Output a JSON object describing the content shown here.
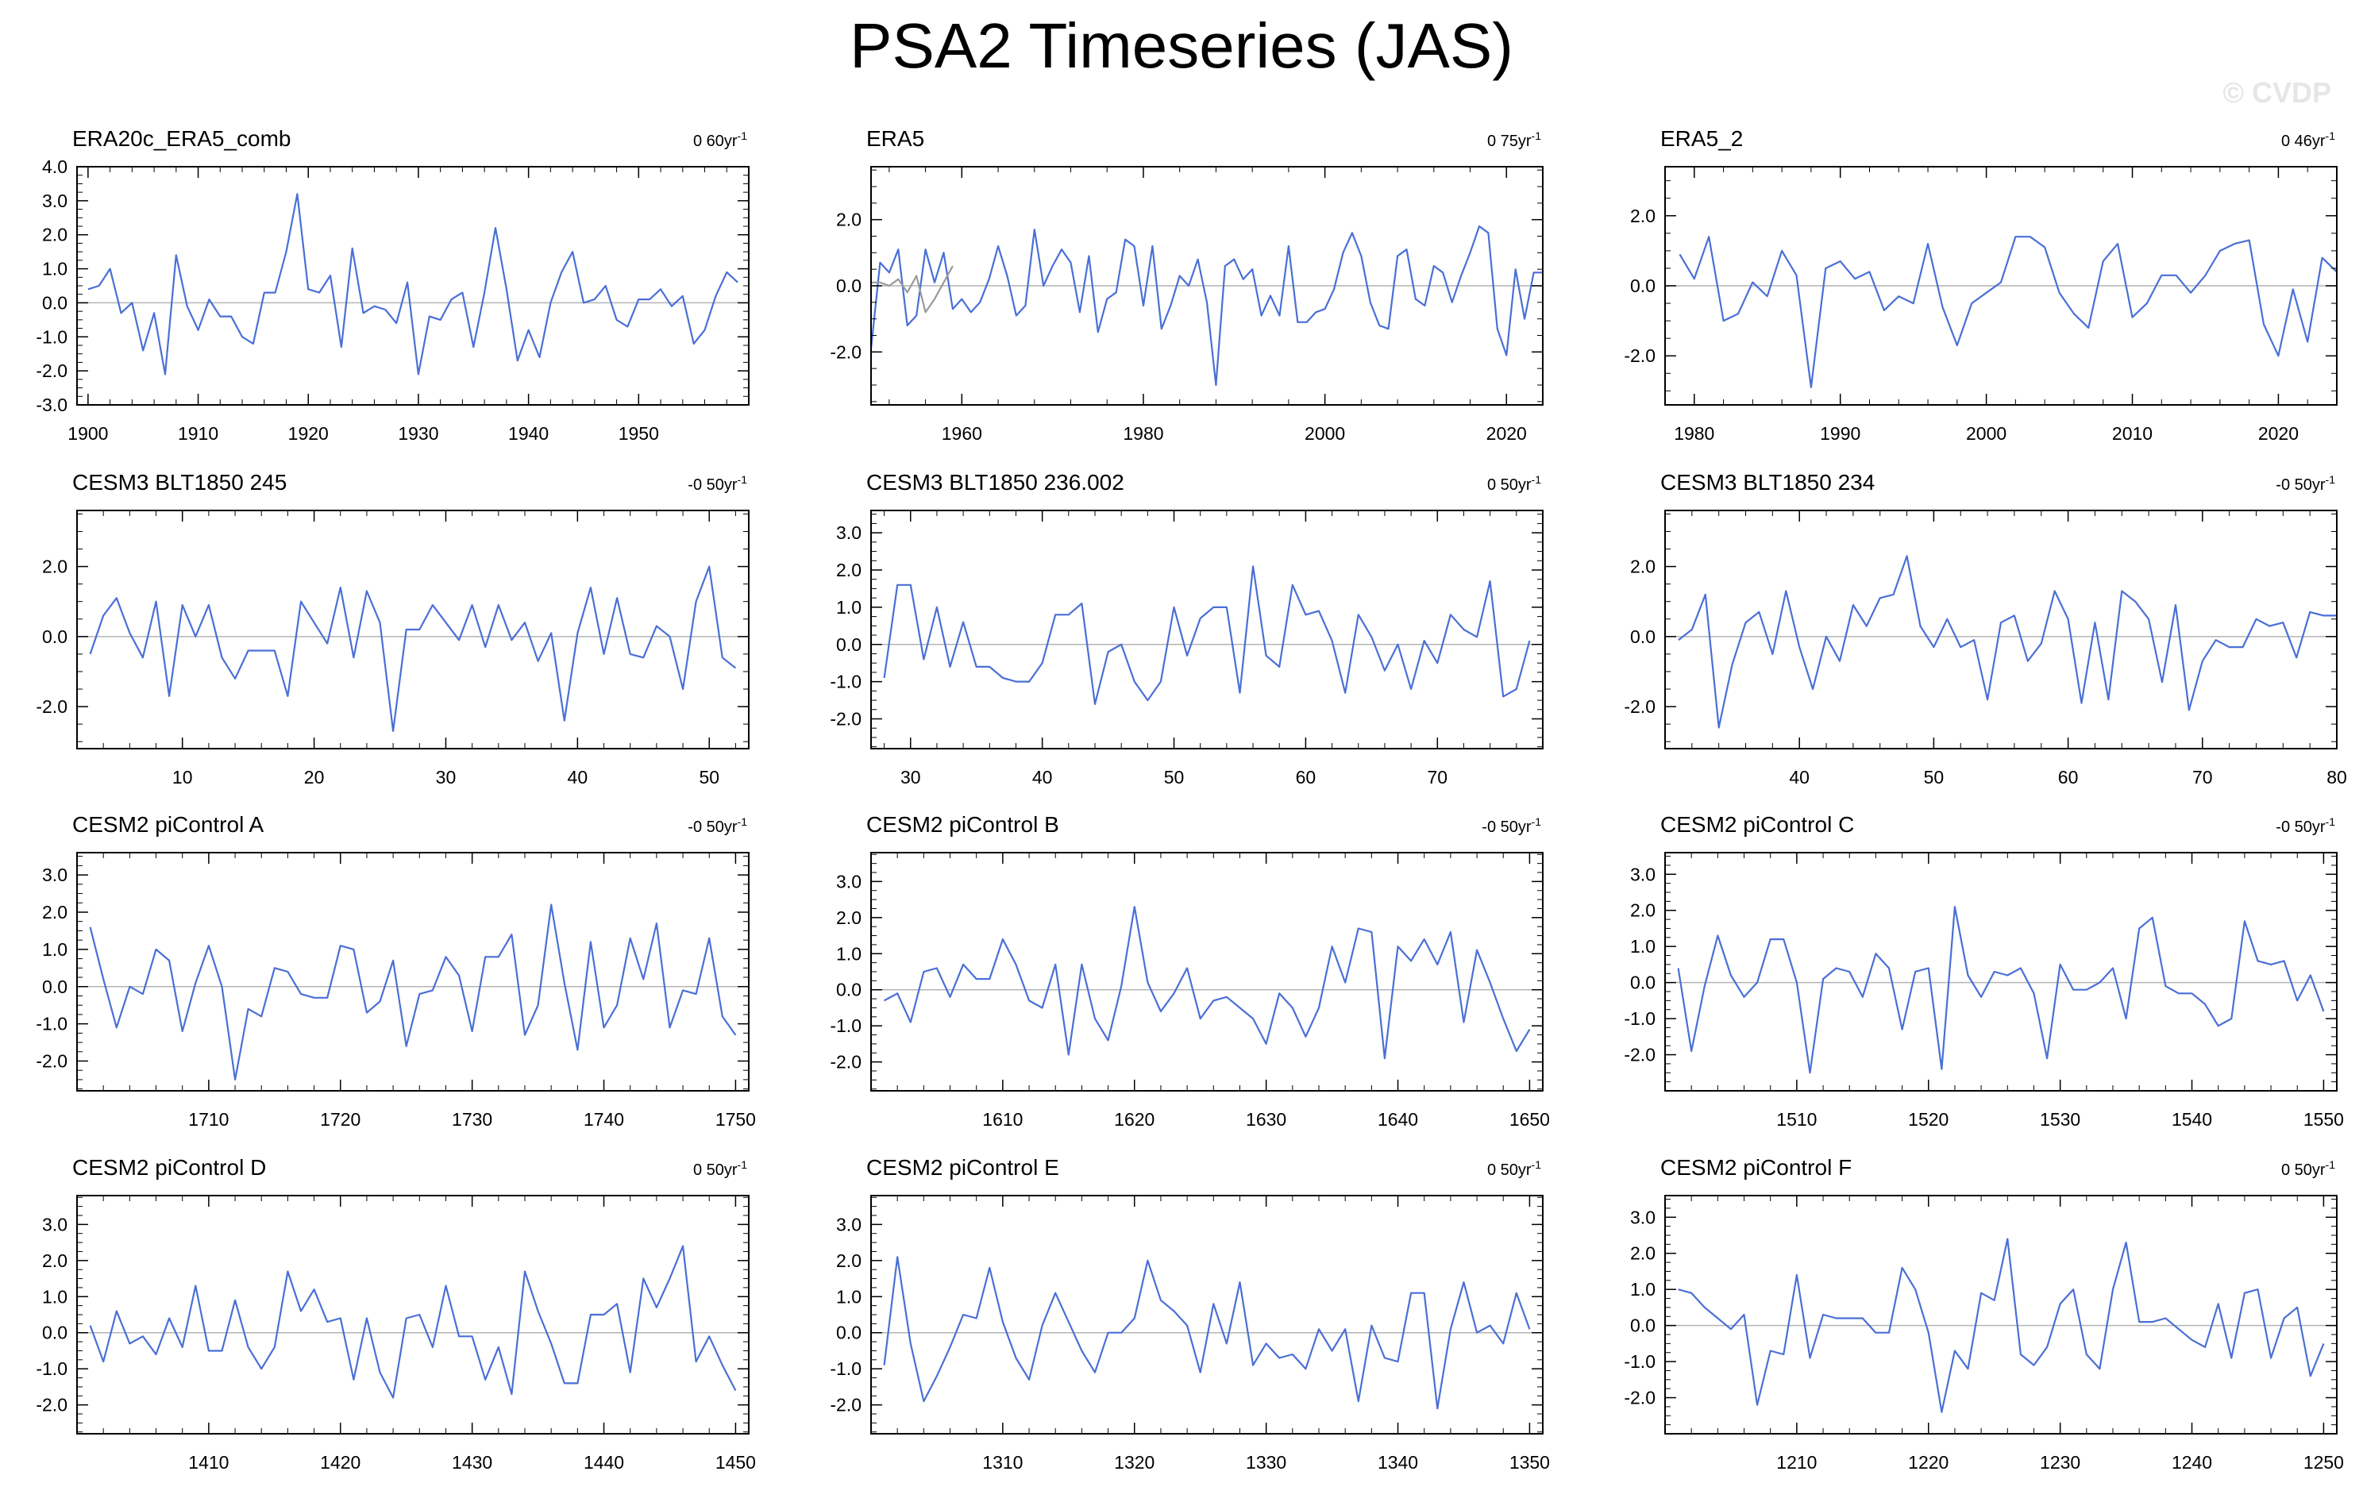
{
  "title": "PSA2 Timeseries (JAS)",
  "watermark": "© CVDP",
  "colors": {
    "series": "#4a6fd6",
    "zero_line": "#b4b4b4",
    "frame": "#000000"
  },
  "chart_data": [
    {
      "type": "line",
      "title": "ERA20c_ERA5_comb",
      "trend": "0 60yr",
      "trend_sup": "-1",
      "xlim": [
        1899,
        1960
      ],
      "ylim": [
        -3,
        4
      ],
      "xticks": [
        1900,
        1910,
        1920,
        1930,
        1940,
        1950
      ],
      "yticks": [
        -3,
        -2,
        -1,
        0,
        1,
        2,
        3,
        4
      ],
      "ytick_labels": [
        "-3.0",
        "-2.0",
        "-1.0",
        "0.0",
        "1.0",
        "2.0",
        "3.0",
        "4.0"
      ],
      "series": [
        {
          "x0": 1900,
          "values": [
            0.4,
            0.5,
            1.0,
            -0.3,
            0.0,
            -1.4,
            -0.3,
            -2.1,
            1.4,
            -0.1,
            -0.8,
            0.1,
            -0.4,
            -0.4,
            -1.0,
            -1.2,
            0.3,
            0.3,
            1.5,
            3.2,
            0.4,
            0.3,
            0.8,
            -1.3,
            1.6,
            -0.3,
            -0.1,
            -0.2,
            -0.6,
            0.6,
            -2.1,
            -0.4,
            -0.5,
            0.1,
            0.3,
            -1.3,
            0.3,
            2.2,
            0.4,
            -1.7,
            -0.8,
            -1.6,
            0.0,
            0.9,
            1.5,
            0.0,
            0.1,
            0.5,
            -0.5,
            -0.7,
            0.1,
            0.1,
            0.4,
            -0.1,
            0.2,
            -1.2,
            -0.8,
            0.2,
            0.9,
            0.6
          ]
        }
      ]
    },
    {
      "type": "line",
      "title": "ERA5",
      "trend": "0 75yr",
      "trend_sup": "-1",
      "xlim": [
        1950,
        2024
      ],
      "ylim": [
        -3.6,
        3.6
      ],
      "xticks": [
        1960,
        1980,
        2000,
        2020
      ],
      "yticks": [
        -2,
        0,
        2
      ],
      "ytick_labels": [
        "-2.0",
        "0.0",
        "2.0"
      ],
      "series": [
        {
          "x0": 1950,
          "values": [
            -1.9,
            0.7,
            0.4,
            1.1,
            -1.2,
            -0.9,
            1.1,
            0.1,
            1.0,
            -0.7,
            -0.4,
            -0.8,
            -0.5,
            0.2,
            1.2,
            0.3,
            -0.9,
            -0.6,
            1.7,
            0.0,
            0.6,
            1.1,
            0.7,
            -0.8,
            0.9,
            -1.4,
            -0.4,
            -0.2,
            1.4,
            1.2,
            -0.6,
            1.2,
            -1.3,
            -0.6,
            0.3,
            0.0,
            0.8,
            -0.5,
            -3.0,
            0.6,
            0.8,
            0.2,
            0.5,
            -0.9,
            -0.3,
            -0.9,
            1.2,
            -1.1,
            -1.1,
            -0.8,
            -0.7,
            -0.1,
            1.0,
            1.6,
            0.9,
            -0.5,
            -1.2,
            -1.3,
            0.9,
            1.1,
            -0.4,
            -0.6,
            0.6,
            0.4,
            -0.5,
            0.3,
            1.0,
            1.8,
            1.6,
            -1.3,
            -2.1,
            0.5,
            -1.0,
            0.4,
            0.4
          ]
        },
        {
          "x0": 1950,
          "values": [
            0.1,
            0.1,
            0.0,
            0.2,
            -0.2,
            0.3,
            -0.8,
            -0.4,
            0.1,
            0.6
          ],
          "color": "#9a9a9a"
        }
      ]
    },
    {
      "type": "line",
      "title": "ERA5_2",
      "trend": "0 46yr",
      "trend_sup": "-1",
      "xlim": [
        1978,
        2024
      ],
      "ylim": [
        -3.4,
        3.4
      ],
      "xticks": [
        1980,
        1990,
        2000,
        2010,
        2020
      ],
      "yticks": [
        -2,
        0,
        2
      ],
      "ytick_labels": [
        "-2.0",
        "0.0",
        "2.0"
      ],
      "series": [
        {
          "x0": 1979,
          "values": [
            0.9,
            0.2,
            1.4,
            -1.0,
            -0.8,
            0.1,
            -0.3,
            1.0,
            0.3,
            -2.9,
            0.5,
            0.7,
            0.2,
            0.4,
            -0.7,
            -0.3,
            -0.5,
            1.2,
            -0.6,
            -1.7,
            -0.5,
            -0.2,
            0.1,
            1.4,
            1.4,
            1.1,
            -0.2,
            -0.8,
            -1.2,
            0.7,
            1.2,
            -0.9,
            -0.5,
            0.3,
            0.3,
            -0.2,
            0.3,
            1.0,
            1.2,
            1.3,
            -1.1,
            -2.0,
            -0.1,
            -1.6,
            0.8,
            0.4
          ]
        }
      ]
    },
    {
      "type": "line",
      "title": "CESM3 BLT1850 245",
      "trend": "-0 50yr",
      "trend_sup": "-1",
      "xlim": [
        2,
        53
      ],
      "ylim": [
        -3.2,
        3.6
      ],
      "xticks": [
        10,
        20,
        30,
        40,
        50
      ],
      "yticks": [
        -2,
        0,
        2
      ],
      "ytick_labels": [
        "-2.0",
        "0.0",
        "2.0"
      ],
      "series": [
        {
          "x0": 3,
          "values": [
            -0.5,
            0.6,
            1.1,
            0.1,
            -0.6,
            1.0,
            -1.7,
            0.9,
            0.0,
            0.9,
            -0.6,
            -1.2,
            -0.4,
            -0.4,
            -0.4,
            -1.7,
            1.0,
            0.4,
            -0.2,
            1.4,
            -0.6,
            1.3,
            0.4,
            -2.7,
            0.2,
            0.2,
            0.9,
            0.4,
            -0.1,
            0.9,
            -0.3,
            0.9,
            -0.1,
            0.4,
            -0.7,
            0.1,
            -2.4,
            0.1,
            1.4,
            -0.5,
            1.1,
            -0.5,
            -0.6,
            0.3,
            0.0,
            -1.5,
            1.0,
            2.0,
            -0.6,
            -0.9
          ]
        }
      ]
    },
    {
      "type": "line",
      "title": "CESM3 BLT1850 236.002",
      "trend": "0 50yr",
      "trend_sup": "-1",
      "xlim": [
        27,
        78
      ],
      "ylim": [
        -2.8,
        3.6
      ],
      "xticks": [
        30,
        40,
        50,
        60,
        70
      ],
      "yticks": [
        -2,
        -1,
        0,
        1,
        2,
        3
      ],
      "ytick_labels": [
        "-2.0",
        "-1.0",
        "0.0",
        "1.0",
        "2.0",
        "3.0"
      ],
      "series": [
        {
          "x0": 28,
          "values": [
            -0.9,
            1.6,
            1.6,
            -0.4,
            1.0,
            -0.6,
            0.6,
            -0.6,
            -0.6,
            -0.9,
            -1.0,
            -1.0,
            -0.5,
            0.8,
            0.8,
            1.1,
            -1.6,
            -0.2,
            0.0,
            -1.0,
            -1.5,
            -1.0,
            1.0,
            -0.3,
            0.7,
            1.0,
            1.0,
            -1.3,
            2.1,
            -0.3,
            -0.6,
            1.6,
            0.8,
            0.9,
            0.1,
            -1.3,
            0.8,
            0.2,
            -0.7,
            0.0,
            -1.2,
            0.1,
            -0.5,
            0.8,
            0.4,
            0.2,
            1.7,
            -1.4,
            -1.2,
            0.1
          ]
        }
      ]
    },
    {
      "type": "line",
      "title": "CESM3 BLT1850 234",
      "trend": "-0 50yr",
      "trend_sup": "-1",
      "xlim": [
        30,
        80
      ],
      "ylim": [
        -3.2,
        3.6
      ],
      "xticks": [
        40,
        50,
        60,
        70,
        80
      ],
      "yticks": [
        -2,
        0,
        2
      ],
      "ytick_labels": [
        "-2.0",
        "0.0",
        "2.0"
      ],
      "series": [
        {
          "x0": 31,
          "values": [
            -0.1,
            0.2,
            1.2,
            -2.6,
            -0.8,
            0.4,
            0.7,
            -0.5,
            1.3,
            -0.3,
            -1.5,
            0.0,
            -0.7,
            0.9,
            0.3,
            1.1,
            1.2,
            2.3,
            0.3,
            -0.3,
            0.5,
            -0.3,
            -0.1,
            -1.8,
            0.4,
            0.6,
            -0.7,
            -0.2,
            1.3,
            0.5,
            -1.9,
            0.4,
            -1.8,
            1.3,
            1.0,
            0.5,
            -1.3,
            0.9,
            -2.1,
            -0.7,
            -0.1,
            -0.3,
            -0.3,
            0.5,
            0.3,
            0.4,
            -0.6,
            0.7,
            0.6,
            0.6
          ]
        }
      ]
    },
    {
      "type": "line",
      "title": "CESM2 piControl A",
      "trend": "-0 50yr",
      "trend_sup": "-1",
      "xlim": [
        1700,
        1751
      ],
      "ylim": [
        -2.8,
        3.6
      ],
      "xticks": [
        1710,
        1720,
        1730,
        1740,
        1750
      ],
      "yticks": [
        -2,
        -1,
        0,
        1,
        2,
        3
      ],
      "ytick_labels": [
        "-2.0",
        "-1.0",
        "0.0",
        "1.0",
        "2.0",
        "3.0"
      ],
      "series": [
        {
          "x0": 1701,
          "values": [
            1.6,
            0.2,
            -1.1,
            0.0,
            -0.2,
            1.0,
            0.7,
            -1.2,
            0.1,
            1.1,
            0.0,
            -2.5,
            -0.6,
            -0.8,
            0.5,
            0.4,
            -0.2,
            -0.3,
            -0.3,
            1.1,
            1.0,
            -0.7,
            -0.4,
            0.7,
            -1.6,
            -0.2,
            -0.1,
            0.8,
            0.3,
            -1.2,
            0.8,
            0.8,
            1.4,
            -1.3,
            -0.5,
            2.2,
            0.1,
            -1.7,
            1.2,
            -1.1,
            -0.5,
            1.3,
            0.2,
            1.7,
            -1.1,
            -0.1,
            -0.2,
            1.3,
            -0.8,
            -1.3
          ]
        }
      ]
    },
    {
      "type": "line",
      "title": "CESM2 piControl B",
      "trend": "-0 50yr",
      "trend_sup": "-1",
      "xlim": [
        1600,
        1651
      ],
      "ylim": [
        -2.8,
        3.8
      ],
      "xticks": [
        1610,
        1620,
        1630,
        1640,
        1650
      ],
      "yticks": [
        -2,
        -1,
        0,
        1,
        2,
        3
      ],
      "ytick_labels": [
        "-2.0",
        "-1.0",
        "0.0",
        "1.0",
        "2.0",
        "3.0"
      ],
      "series": [
        {
          "x0": 1601,
          "values": [
            -0.3,
            -0.1,
            -0.9,
            0.5,
            0.6,
            -0.2,
            0.7,
            0.3,
            0.3,
            1.4,
            0.7,
            -0.3,
            -0.5,
            0.7,
            -1.8,
            0.7,
            -0.8,
            -1.4,
            0.1,
            2.3,
            0.2,
            -0.6,
            -0.1,
            0.6,
            -0.8,
            -0.3,
            -0.2,
            -0.5,
            -0.8,
            -1.5,
            -0.1,
            -0.5,
            -1.3,
            -0.5,
            1.2,
            0.2,
            1.7,
            1.6,
            -1.9,
            1.2,
            0.8,
            1.4,
            0.7,
            1.6,
            -0.9,
            1.1,
            0.2,
            -0.8,
            -1.7,
            -1.1
          ]
        }
      ]
    },
    {
      "type": "line",
      "title": "CESM2 piControl C",
      "trend": "-0 50yr",
      "trend_sup": "-1",
      "xlim": [
        1500,
        1551
      ],
      "ylim": [
        -3.0,
        3.6
      ],
      "xticks": [
        1510,
        1520,
        1530,
        1540,
        1550
      ],
      "yticks": [
        -2,
        -1,
        0,
        1,
        2,
        3
      ],
      "ytick_labels": [
        "-2.0",
        "-1.0",
        "0.0",
        "1.0",
        "2.0",
        "3.0"
      ],
      "series": [
        {
          "x0": 1501,
          "values": [
            0.4,
            -1.9,
            -0.1,
            1.3,
            0.2,
            -0.4,
            0.0,
            1.2,
            1.2,
            0.0,
            -2.5,
            0.1,
            0.4,
            0.3,
            -0.4,
            0.8,
            0.4,
            -1.3,
            0.3,
            0.4,
            -2.4,
            2.1,
            0.2,
            -0.4,
            0.3,
            0.2,
            0.4,
            -0.3,
            -2.1,
            0.5,
            -0.2,
            -0.2,
            0.0,
            0.4,
            -1.0,
            1.5,
            1.8,
            -0.1,
            -0.3,
            -0.3,
            -0.6,
            -1.2,
            -1.0,
            1.7,
            0.6,
            0.5,
            0.6,
            -0.5,
            0.2,
            -0.8
          ]
        }
      ]
    },
    {
      "type": "line",
      "title": "CESM2 piControl D",
      "trend": "0 50yr",
      "trend_sup": "-1",
      "xlim": [
        1400,
        1451
      ],
      "ylim": [
        -2.8,
        3.8
      ],
      "xticks": [
        1410,
        1420,
        1430,
        1440,
        1450
      ],
      "yticks": [
        -2,
        -1,
        0,
        1,
        2,
        3
      ],
      "ytick_labels": [
        "-2.0",
        "-1.0",
        "0.0",
        "1.0",
        "2.0",
        "3.0"
      ],
      "series": [
        {
          "x0": 1401,
          "values": [
            0.2,
            -0.8,
            0.6,
            -0.3,
            -0.1,
            -0.6,
            0.4,
            -0.4,
            1.3,
            -0.5,
            -0.5,
            0.9,
            -0.4,
            -1.0,
            -0.4,
            1.7,
            0.6,
            1.2,
            0.3,
            0.4,
            -1.3,
            0.4,
            -1.1,
            -1.8,
            0.4,
            0.5,
            -0.4,
            1.3,
            -0.1,
            -0.1,
            -1.3,
            -0.4,
            -1.7,
            1.7,
            0.6,
            -0.3,
            -1.4,
            -1.4,
            0.5,
            0.5,
            0.8,
            -1.1,
            1.5,
            0.7,
            1.5,
            2.4,
            -0.8,
            -0.1,
            -0.9,
            -1.6
          ]
        }
      ]
    },
    {
      "type": "line",
      "title": "CESM2 piControl E",
      "trend": "0 50yr",
      "trend_sup": "-1",
      "xlim": [
        1300,
        1351
      ],
      "ylim": [
        -2.8,
        3.8
      ],
      "xticks": [
        1310,
        1320,
        1330,
        1340,
        1350
      ],
      "yticks": [
        -2,
        -1,
        0,
        1,
        2,
        3
      ],
      "ytick_labels": [
        "-2.0",
        "-1.0",
        "0.0",
        "1.0",
        "2.0",
        "3.0"
      ],
      "series": [
        {
          "x0": 1301,
          "values": [
            -0.9,
            2.1,
            -0.3,
            -1.9,
            -1.2,
            -0.4,
            0.5,
            0.4,
            1.8,
            0.3,
            -0.7,
            -1.3,
            0.2,
            1.1,
            0.3,
            -0.5,
            -1.1,
            0.0,
            0.0,
            0.4,
            2.0,
            0.9,
            0.6,
            0.2,
            -1.1,
            0.8,
            -0.3,
            1.4,
            -0.9,
            -0.3,
            -0.7,
            -0.6,
            -1.0,
            0.1,
            -0.5,
            0.1,
            -1.9,
            0.2,
            -0.7,
            -0.8,
            1.1,
            1.1,
            -2.1,
            0.1,
            1.4,
            0.0,
            0.2,
            -0.3,
            1.1,
            0.1
          ]
        }
      ]
    },
    {
      "type": "line",
      "title": "CESM2 piControl F",
      "trend": "0 50yr",
      "trend_sup": "-1",
      "xlim": [
        1200,
        1251
      ],
      "ylim": [
        -3.0,
        3.6
      ],
      "xticks": [
        1210,
        1220,
        1230,
        1240,
        1250
      ],
      "yticks": [
        -2,
        -1,
        0,
        1,
        2,
        3
      ],
      "ytick_labels": [
        "-2.0",
        "-1.0",
        "0.0",
        "1.0",
        "2.0",
        "3.0"
      ],
      "series": [
        {
          "x0": 1201,
          "values": [
            1.0,
            0.9,
            0.5,
            0.2,
            -0.1,
            0.3,
            -2.2,
            -0.7,
            -0.8,
            1.4,
            -0.9,
            0.3,
            0.2,
            0.2,
            0.2,
            -0.2,
            -0.2,
            1.6,
            1.0,
            -0.2,
            -2.4,
            -0.7,
            -1.2,
            0.9,
            0.7,
            2.4,
            -0.8,
            -1.1,
            -0.6,
            0.6,
            1.0,
            -0.8,
            -1.2,
            1.0,
            2.3,
            0.1,
            0.1,
            0.2,
            -0.1,
            -0.4,
            -0.6,
            0.6,
            -0.9,
            0.9,
            1.0,
            -0.9,
            0.2,
            0.5,
            -1.4,
            -0.5
          ]
        }
      ]
    }
  ]
}
